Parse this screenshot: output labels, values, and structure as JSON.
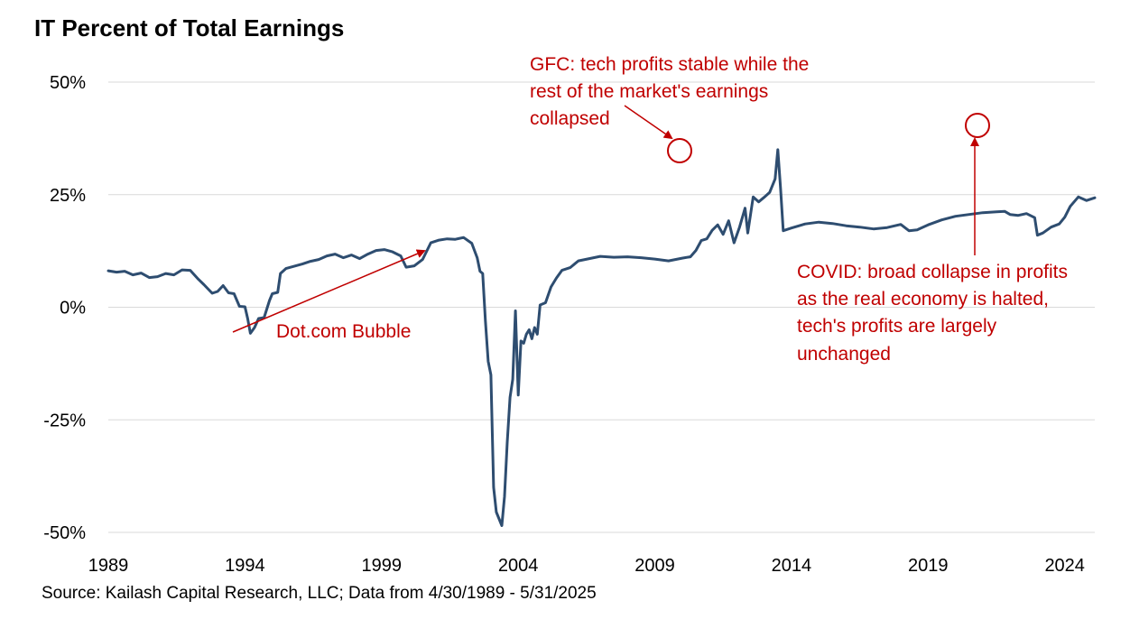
{
  "chart_data": {
    "type": "line",
    "title": "IT Percent of Total Earnings",
    "xlabel": "",
    "ylabel": "",
    "ylim": [
      -50,
      50
    ],
    "xlim": [
      1989,
      2025.1
    ],
    "grid": "horizontal",
    "colors": {
      "line": "#2E4D70",
      "annotation": "#C00000",
      "grid": "#D9D9D9"
    },
    "y_ticks": [
      {
        "value": 50,
        "label": "50%"
      },
      {
        "value": 25,
        "label": "25%"
      },
      {
        "value": 0,
        "label": "0%"
      },
      {
        "value": -25,
        "label": "-25%"
      },
      {
        "value": -50,
        "label": "-50%"
      }
    ],
    "x_ticks": [
      {
        "value": 1989,
        "label": "1989"
      },
      {
        "value": 1994,
        "label": "1994"
      },
      {
        "value": 1999,
        "label": "1999"
      },
      {
        "value": 2004,
        "label": "2004"
      },
      {
        "value": 2009,
        "label": "2009"
      },
      {
        "value": 2014,
        "label": "2014"
      },
      {
        "value": 2019,
        "label": "2019"
      },
      {
        "value": 2024,
        "label": "2024"
      }
    ],
    "series": [
      {
        "points": [
          [
            1989.0,
            8.1
          ],
          [
            1989.3,
            7.8
          ],
          [
            1989.6,
            8.0
          ],
          [
            1989.9,
            7.2
          ],
          [
            1990.2,
            7.6
          ],
          [
            1990.5,
            6.6
          ],
          [
            1990.8,
            6.8
          ],
          [
            1991.1,
            7.5
          ],
          [
            1991.4,
            7.2
          ],
          [
            1991.7,
            8.3
          ],
          [
            1992.0,
            8.2
          ],
          [
            1992.3,
            6.2
          ],
          [
            1992.5,
            5.0
          ],
          [
            1992.8,
            3.1
          ],
          [
            1993.0,
            3.5
          ],
          [
            1993.2,
            4.8
          ],
          [
            1993.4,
            3.2
          ],
          [
            1993.6,
            3.0
          ],
          [
            1993.8,
            0.2
          ],
          [
            1994.0,
            0.1
          ],
          [
            1994.1,
            -2.5
          ],
          [
            1994.2,
            -5.8
          ],
          [
            1994.35,
            -4.5
          ],
          [
            1994.5,
            -2.5
          ],
          [
            1994.7,
            -2.3
          ],
          [
            1994.9,
            1.5
          ],
          [
            1995.0,
            3.0
          ],
          [
            1995.2,
            3.3
          ],
          [
            1995.3,
            7.5
          ],
          [
            1995.5,
            8.6
          ],
          [
            1995.8,
            9.1
          ],
          [
            1996.1,
            9.6
          ],
          [
            1996.4,
            10.2
          ],
          [
            1996.7,
            10.6
          ],
          [
            1997.0,
            11.4
          ],
          [
            1997.3,
            11.8
          ],
          [
            1997.6,
            11.0
          ],
          [
            1997.9,
            11.6
          ],
          [
            1998.2,
            10.8
          ],
          [
            1998.5,
            11.8
          ],
          [
            1998.8,
            12.6
          ],
          [
            1999.1,
            12.8
          ],
          [
            1999.4,
            12.3
          ],
          [
            1999.7,
            11.4
          ],
          [
            1999.9,
            8.9
          ],
          [
            2000.2,
            9.2
          ],
          [
            2000.5,
            10.6
          ],
          [
            2000.8,
            14.3
          ],
          [
            2001.1,
            14.9
          ],
          [
            2001.4,
            15.2
          ],
          [
            2001.7,
            15.1
          ],
          [
            2002.0,
            15.5
          ],
          [
            2002.3,
            14.2
          ],
          [
            2002.5,
            11.0
          ],
          [
            2002.6,
            8.0
          ],
          [
            2002.7,
            7.5
          ],
          [
            2002.8,
            -3.0
          ],
          [
            2002.9,
            -12.0
          ],
          [
            2003.0,
            -15.0
          ],
          [
            2003.1,
            -40.0
          ],
          [
            2003.2,
            -45.5
          ],
          [
            2003.4,
            -48.5
          ],
          [
            2003.5,
            -42.0
          ],
          [
            2003.6,
            -30.0
          ],
          [
            2003.7,
            -20.0
          ],
          [
            2003.8,
            -16.0
          ],
          [
            2003.9,
            -0.8
          ],
          [
            2004.0,
            -19.5
          ],
          [
            2004.1,
            -7.5
          ],
          [
            2004.2,
            -8.0
          ],
          [
            2004.3,
            -6.0
          ],
          [
            2004.4,
            -5.0
          ],
          [
            2004.5,
            -7.0
          ],
          [
            2004.6,
            -4.5
          ],
          [
            2004.7,
            -6.0
          ],
          [
            2004.8,
            0.5
          ],
          [
            2005.0,
            1.0
          ],
          [
            2005.2,
            4.5
          ],
          [
            2005.4,
            6.5
          ],
          [
            2005.6,
            8.2
          ],
          [
            2005.9,
            8.8
          ],
          [
            2006.2,
            10.3
          ],
          [
            2006.6,
            10.8
          ],
          [
            2007.0,
            11.3
          ],
          [
            2007.5,
            11.1
          ],
          [
            2008.0,
            11.2
          ],
          [
            2008.5,
            11.0
          ],
          [
            2009.0,
            10.7
          ],
          [
            2009.5,
            10.3
          ],
          [
            2010.0,
            10.9
          ],
          [
            2010.3,
            11.2
          ],
          [
            2010.5,
            12.6
          ],
          [
            2010.7,
            14.8
          ],
          [
            2010.9,
            15.2
          ],
          [
            2011.1,
            17.1
          ],
          [
            2011.3,
            18.3
          ],
          [
            2011.5,
            16.2
          ],
          [
            2011.7,
            19.2
          ],
          [
            2011.9,
            14.3
          ],
          [
            2012.1,
            17.8
          ],
          [
            2012.3,
            22.0
          ],
          [
            2012.4,
            16.5
          ],
          [
            2012.6,
            24.5
          ],
          [
            2012.8,
            23.4
          ],
          [
            2013.0,
            24.4
          ],
          [
            2013.2,
            25.5
          ],
          [
            2013.4,
            28.5
          ],
          [
            2013.5,
            35.0
          ],
          [
            2013.6,
            26.5
          ],
          [
            2013.7,
            17.0
          ],
          [
            2014.0,
            17.6
          ],
          [
            2014.5,
            18.5
          ],
          [
            2015.0,
            18.9
          ],
          [
            2015.5,
            18.6
          ],
          [
            2016.0,
            18.1
          ],
          [
            2016.5,
            17.8
          ],
          [
            2017.0,
            17.4
          ],
          [
            2017.5,
            17.7
          ],
          [
            2018.0,
            18.4
          ],
          [
            2018.3,
            17.0
          ],
          [
            2018.6,
            17.2
          ],
          [
            2019.0,
            18.3
          ],
          [
            2019.5,
            19.4
          ],
          [
            2020.0,
            20.2
          ],
          [
            2020.5,
            20.6
          ],
          [
            2021.0,
            21.0
          ],
          [
            2021.5,
            21.2
          ],
          [
            2021.8,
            21.3
          ],
          [
            2022.0,
            20.6
          ],
          [
            2022.3,
            20.4
          ],
          [
            2022.6,
            20.8
          ],
          [
            2022.9,
            19.9
          ],
          [
            2023.0,
            16.0
          ],
          [
            2023.2,
            16.5
          ],
          [
            2023.5,
            17.8
          ],
          [
            2023.8,
            18.5
          ],
          [
            2024.0,
            20.0
          ],
          [
            2024.2,
            22.4
          ],
          [
            2024.5,
            24.5
          ],
          [
            2024.8,
            23.7
          ],
          [
            2025.1,
            24.3
          ]
        ]
      }
    ]
  },
  "annotations": {
    "gfc": [
      "GFC: tech profits stable while the",
      "rest of the market's earnings",
      "collapsed"
    ],
    "dotcom": [
      "Dot.com Bubble"
    ],
    "covid": [
      "COVID: broad collapse in profits",
      "as the real economy is halted,",
      "tech's profits are largely",
      "unchanged"
    ]
  },
  "source": "Source: Kailash Capital Research, LLC; Data from 4/30/1989 - 5/31/2025"
}
